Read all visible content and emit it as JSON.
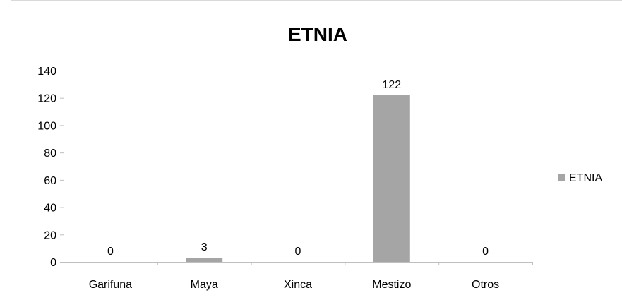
{
  "chart_data": {
    "type": "bar",
    "title": "ETNIA",
    "categories": [
      "Garifuna",
      "Maya",
      "Xinca",
      "Mestizo",
      "Otros"
    ],
    "series": [
      {
        "name": "ETNIA",
        "values": [
          0,
          3,
          0,
          122,
          0
        ],
        "color": "#a5a5a5"
      }
    ],
    "data_labels": [
      "0",
      "3",
      "0",
      "122",
      "0"
    ],
    "y_ticks": [
      "0",
      "20",
      "40",
      "60",
      "80",
      "100",
      "120",
      "140"
    ],
    "ylim": [
      0,
      140
    ],
    "grid": false,
    "legend": {
      "position": "right",
      "label": "ETNIA"
    }
  }
}
